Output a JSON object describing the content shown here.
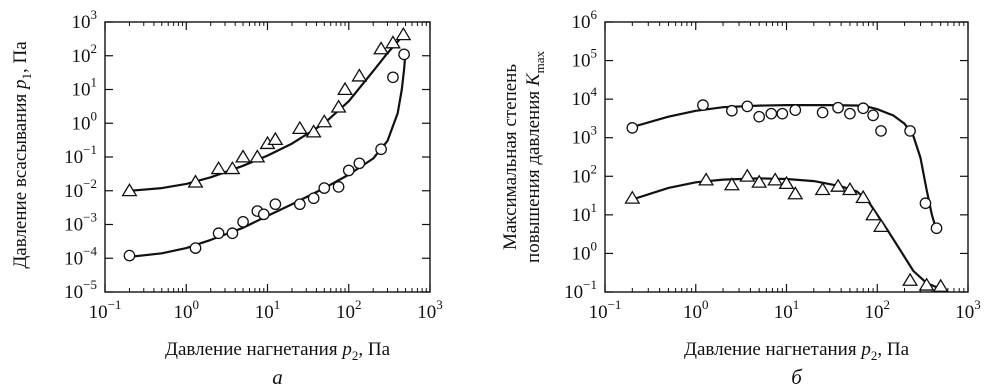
{
  "chart_data": [
    {
      "type": "scatter",
      "panel_label": "а",
      "xlabel": "Давление нагнетания p2, Па",
      "xlabel_parts": [
        "Давление нагнетания ",
        "p",
        "2",
        ", Па"
      ],
      "ylabel": "Давление всасывания p1, Па",
      "ylabel_parts": [
        "Давление всасывания ",
        "p",
        "1",
        ", Па"
      ],
      "x_scale": "log",
      "y_scale": "log",
      "xlim": [
        0.1,
        1000
      ],
      "ylim": [
        1e-05,
        1000
      ],
      "x_ticks": [
        {
          "base": "10",
          "exp": "−1",
          "v": 0.1
        },
        {
          "base": "10",
          "exp": "0",
          "v": 1
        },
        {
          "base": "10",
          "exp": "1",
          "v": 10
        },
        {
          "base": "10",
          "exp": "2",
          "v": 100
        },
        {
          "base": "10",
          "exp": "3",
          "v": 1000
        }
      ],
      "y_ticks": [
        {
          "base": "10",
          "exp": "−5",
          "v": 1e-05
        },
        {
          "base": "10",
          "exp": "−4",
          "v": 0.0001
        },
        {
          "base": "10",
          "exp": "−3",
          "v": 0.001
        },
        {
          "base": "10",
          "exp": "−2",
          "v": 0.01
        },
        {
          "base": "10",
          "exp": "−1",
          "v": 0.1
        },
        {
          "base": "10",
          "exp": "0",
          "v": 1
        },
        {
          "base": "10",
          "exp": "1",
          "v": 10
        },
        {
          "base": "10",
          "exp": "2",
          "v": 100
        },
        {
          "base": "10",
          "exp": "3",
          "v": 1000
        }
      ],
      "grid": false,
      "series": [
        {
          "marker": "triangle",
          "points": [
            [
              0.2,
              0.01
            ],
            [
              1.3,
              0.018
            ],
            [
              2.5,
              0.045
            ],
            [
              3.7,
              0.045
            ],
            [
              5.0,
              0.1
            ],
            [
              7.5,
              0.1
            ],
            [
              10,
              0.25
            ],
            [
              12.5,
              0.33
            ],
            [
              25,
              0.7
            ],
            [
              37,
              0.55
            ],
            [
              50,
              1.1
            ],
            [
              75,
              3.0
            ],
            [
              90,
              10
            ],
            [
              135,
              25
            ],
            [
              250,
              160
            ],
            [
              350,
              240
            ],
            [
              470,
              420
            ]
          ],
          "fit": [
            [
              0.2,
              0.01
            ],
            [
              0.5,
              0.012
            ],
            [
              1,
              0.016
            ],
            [
              2,
              0.025
            ],
            [
              5,
              0.055
            ],
            [
              10,
              0.11
            ],
            [
              20,
              0.25
            ],
            [
              50,
              1.0
            ],
            [
              100,
              4.5
            ],
            [
              200,
              35
            ],
            [
              300,
              120
            ],
            [
              420,
              300
            ],
            [
              480,
              420
            ]
          ]
        },
        {
          "marker": "circle",
          "points": [
            [
              0.2,
              0.00012
            ],
            [
              1.3,
              0.0002
            ],
            [
              2.5,
              0.00055
            ],
            [
              3.7,
              0.00055
            ],
            [
              5.0,
              0.0012
            ],
            [
              7.5,
              0.0025
            ],
            [
              9,
              0.002
            ],
            [
              12.5,
              0.004
            ],
            [
              25,
              0.004
            ],
            [
              37,
              0.006
            ],
            [
              50,
              0.012
            ],
            [
              75,
              0.013
            ],
            [
              100,
              0.04
            ],
            [
              135,
              0.065
            ],
            [
              250,
              0.17
            ],
            [
              350,
              23
            ],
            [
              480,
              110
            ]
          ],
          "fit": [
            [
              0.2,
              0.00011
            ],
            [
              0.5,
              0.00014
            ],
            [
              1,
              0.0002
            ],
            [
              2,
              0.00035
            ],
            [
              5,
              0.0008
            ],
            [
              10,
              0.0018
            ],
            [
              20,
              0.004
            ],
            [
              50,
              0.012
            ],
            [
              100,
              0.03
            ],
            [
              200,
              0.09
            ],
            [
              300,
              0.3
            ],
            [
              400,
              2
            ],
            [
              450,
              10
            ],
            [
              480,
              40
            ],
            [
              495,
              100
            ]
          ]
        }
      ]
    },
    {
      "type": "scatter",
      "panel_label": "б",
      "xlabel": "Давление нагнетания p2, Па",
      "xlabel_parts": [
        "Давление нагнетания ",
        "p",
        "2",
        ", Па"
      ],
      "ylabel_line1": "Максимальная степень",
      "ylabel_line2": "повышения давления Kmax",
      "ylabel_parts": [
        "повышения давления ",
        "K",
        "max"
      ],
      "x_scale": "log",
      "y_scale": "log",
      "xlim": [
        0.1,
        1000
      ],
      "ylim": [
        0.1,
        1000000
      ],
      "x_ticks": [
        {
          "base": "10",
          "exp": "−1",
          "v": 0.1
        },
        {
          "base": "10",
          "exp": "0",
          "v": 1
        },
        {
          "base": "10",
          "exp": "1",
          "v": 10
        },
        {
          "base": "10",
          "exp": "2",
          "v": 100
        },
        {
          "base": "10",
          "exp": "3",
          "v": 1000
        }
      ],
      "y_ticks": [
        {
          "base": "10",
          "exp": "−1",
          "v": 0.1
        },
        {
          "base": "10",
          "exp": "0",
          "v": 1
        },
        {
          "base": "10",
          "exp": "1",
          "v": 10
        },
        {
          "base": "10",
          "exp": "2",
          "v": 100
        },
        {
          "base": "10",
          "exp": "3",
          "v": 1000
        },
        {
          "base": "10",
          "exp": "4",
          "v": 10000
        },
        {
          "base": "10",
          "exp": "5",
          "v": 100000
        },
        {
          "base": "10",
          "exp": "6",
          "v": 1000000
        }
      ],
      "grid": false,
      "series": [
        {
          "marker": "circle",
          "points": [
            [
              0.2,
              1800
            ],
            [
              1.2,
              7000
            ],
            [
              2.5,
              5000
            ],
            [
              3.7,
              6500
            ],
            [
              5,
              3500
            ],
            [
              6.8,
              4200
            ],
            [
              9,
              4200
            ],
            [
              12.5,
              5200
            ],
            [
              25,
              4500
            ],
            [
              37,
              6000
            ],
            [
              50,
              4200
            ],
            [
              70,
              5800
            ],
            [
              90,
              3800
            ],
            [
              110,
              1500
            ],
            [
              230,
              1500
            ],
            [
              340,
              20
            ],
            [
              450,
              4.5
            ]
          ],
          "fit": [
            [
              0.2,
              1900
            ],
            [
              0.5,
              3500
            ],
            [
              1,
              5000
            ],
            [
              2,
              6200
            ],
            [
              5,
              6800
            ],
            [
              10,
              7000
            ],
            [
              30,
              7000
            ],
            [
              70,
              6800
            ],
            [
              100,
              5500
            ],
            [
              150,
              3800
            ],
            [
              200,
              2300
            ],
            [
              250,
              1100
            ],
            [
              300,
              300
            ],
            [
              350,
              45
            ],
            [
              400,
              10
            ],
            [
              450,
              4
            ]
          ]
        },
        {
          "marker": "triangle",
          "points": [
            [
              0.2,
              27
            ],
            [
              1.3,
              80
            ],
            [
              2.5,
              60
            ],
            [
              3.7,
              100
            ],
            [
              5,
              70
            ],
            [
              7.5,
              80
            ],
            [
              10,
              65
            ],
            [
              12.5,
              35
            ],
            [
              25,
              45
            ],
            [
              37,
              55
            ],
            [
              50,
              45
            ],
            [
              70,
              28
            ],
            [
              90,
              10
            ],
            [
              110,
              5
            ],
            [
              230,
              0.2
            ],
            [
              350,
              0.15
            ],
            [
              500,
              0.14
            ]
          ],
          "fit": [
            [
              0.2,
              25
            ],
            [
              0.5,
              50
            ],
            [
              1,
              70
            ],
            [
              2,
              82
            ],
            [
              5,
              88
            ],
            [
              10,
              85
            ],
            [
              20,
              75
            ],
            [
              40,
              55
            ],
            [
              60,
              40
            ],
            [
              80,
              22
            ],
            [
              100,
              10
            ],
            [
              130,
              4
            ],
            [
              180,
              1.2
            ],
            [
              250,
              0.35
            ],
            [
              350,
              0.17
            ],
            [
              500,
              0.12
            ]
          ]
        }
      ]
    }
  ]
}
